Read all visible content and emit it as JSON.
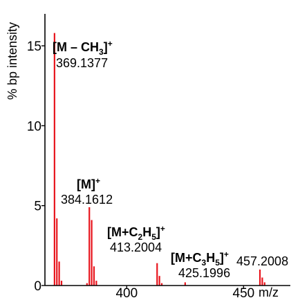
{
  "chart_data": {
    "type": "bar",
    "title": "",
    "xlabel": "m/z",
    "ylabel": "% bp  intensity",
    "xlim": [
      365,
      470
    ],
    "ylim": [
      0,
      17
    ],
    "grid": false,
    "legend": "none",
    "color": "#e8141c",
    "x_ticks": [
      {
        "value": 400,
        "label": "400"
      },
      {
        "value": 450,
        "label": "450"
      }
    ],
    "y_ticks": [
      {
        "value": 0,
        "label": "0"
      },
      {
        "value": 5,
        "label": "5"
      },
      {
        "value": 10,
        "label": "10"
      },
      {
        "value": 15,
        "label": "15"
      }
    ],
    "peaks": [
      {
        "x": 369.1,
        "y": 15.8
      },
      {
        "x": 370.1,
        "y": 4.2
      },
      {
        "x": 371.1,
        "y": 1.5
      },
      {
        "x": 372.1,
        "y": 0.3
      },
      {
        "x": 383.0,
        "y": 0.15
      },
      {
        "x": 384.0,
        "y": 4.9
      },
      {
        "x": 385.0,
        "y": 4.1
      },
      {
        "x": 386.0,
        "y": 1.2
      },
      {
        "x": 387.0,
        "y": 0.3
      },
      {
        "x": 413.0,
        "y": 1.4
      },
      {
        "x": 414.0,
        "y": 0.6
      },
      {
        "x": 415.0,
        "y": 0.15
      },
      {
        "x": 425.0,
        "y": 0.2
      },
      {
        "x": 457.0,
        "y": 1.0
      },
      {
        "x": 458.0,
        "y": 0.5
      },
      {
        "x": 459.0,
        "y": 0.2
      }
    ],
    "annotations": [
      {
        "parts": [
          {
            "t": "[M – CH"
          },
          {
            "t": "3",
            "sub": true
          },
          {
            "t": "]"
          },
          {
            "t": "+",
            "sup": true
          }
        ],
        "mass": "369.1377"
      },
      {
        "parts": [
          {
            "t": "[M]"
          },
          {
            "t": "+",
            "sup": true
          }
        ],
        "mass": "384.1612"
      },
      {
        "parts": [
          {
            "t": "[M+C"
          },
          {
            "t": "2",
            "sub": true
          },
          {
            "t": "H"
          },
          {
            "t": "5",
            "sub": true
          },
          {
            "t": "]"
          },
          {
            "t": "+",
            "sup": true
          }
        ],
        "mass": "413.2004"
      },
      {
        "parts": [
          {
            "t": "[M+C"
          },
          {
            "t": "3",
            "sub": true
          },
          {
            "t": "H"
          },
          {
            "t": "5",
            "sub": true
          },
          {
            "t": "]"
          },
          {
            "t": "+",
            "sup": true
          }
        ],
        "mass": "425.1996"
      },
      {
        "parts": [],
        "mass": "457.2008"
      }
    ]
  }
}
